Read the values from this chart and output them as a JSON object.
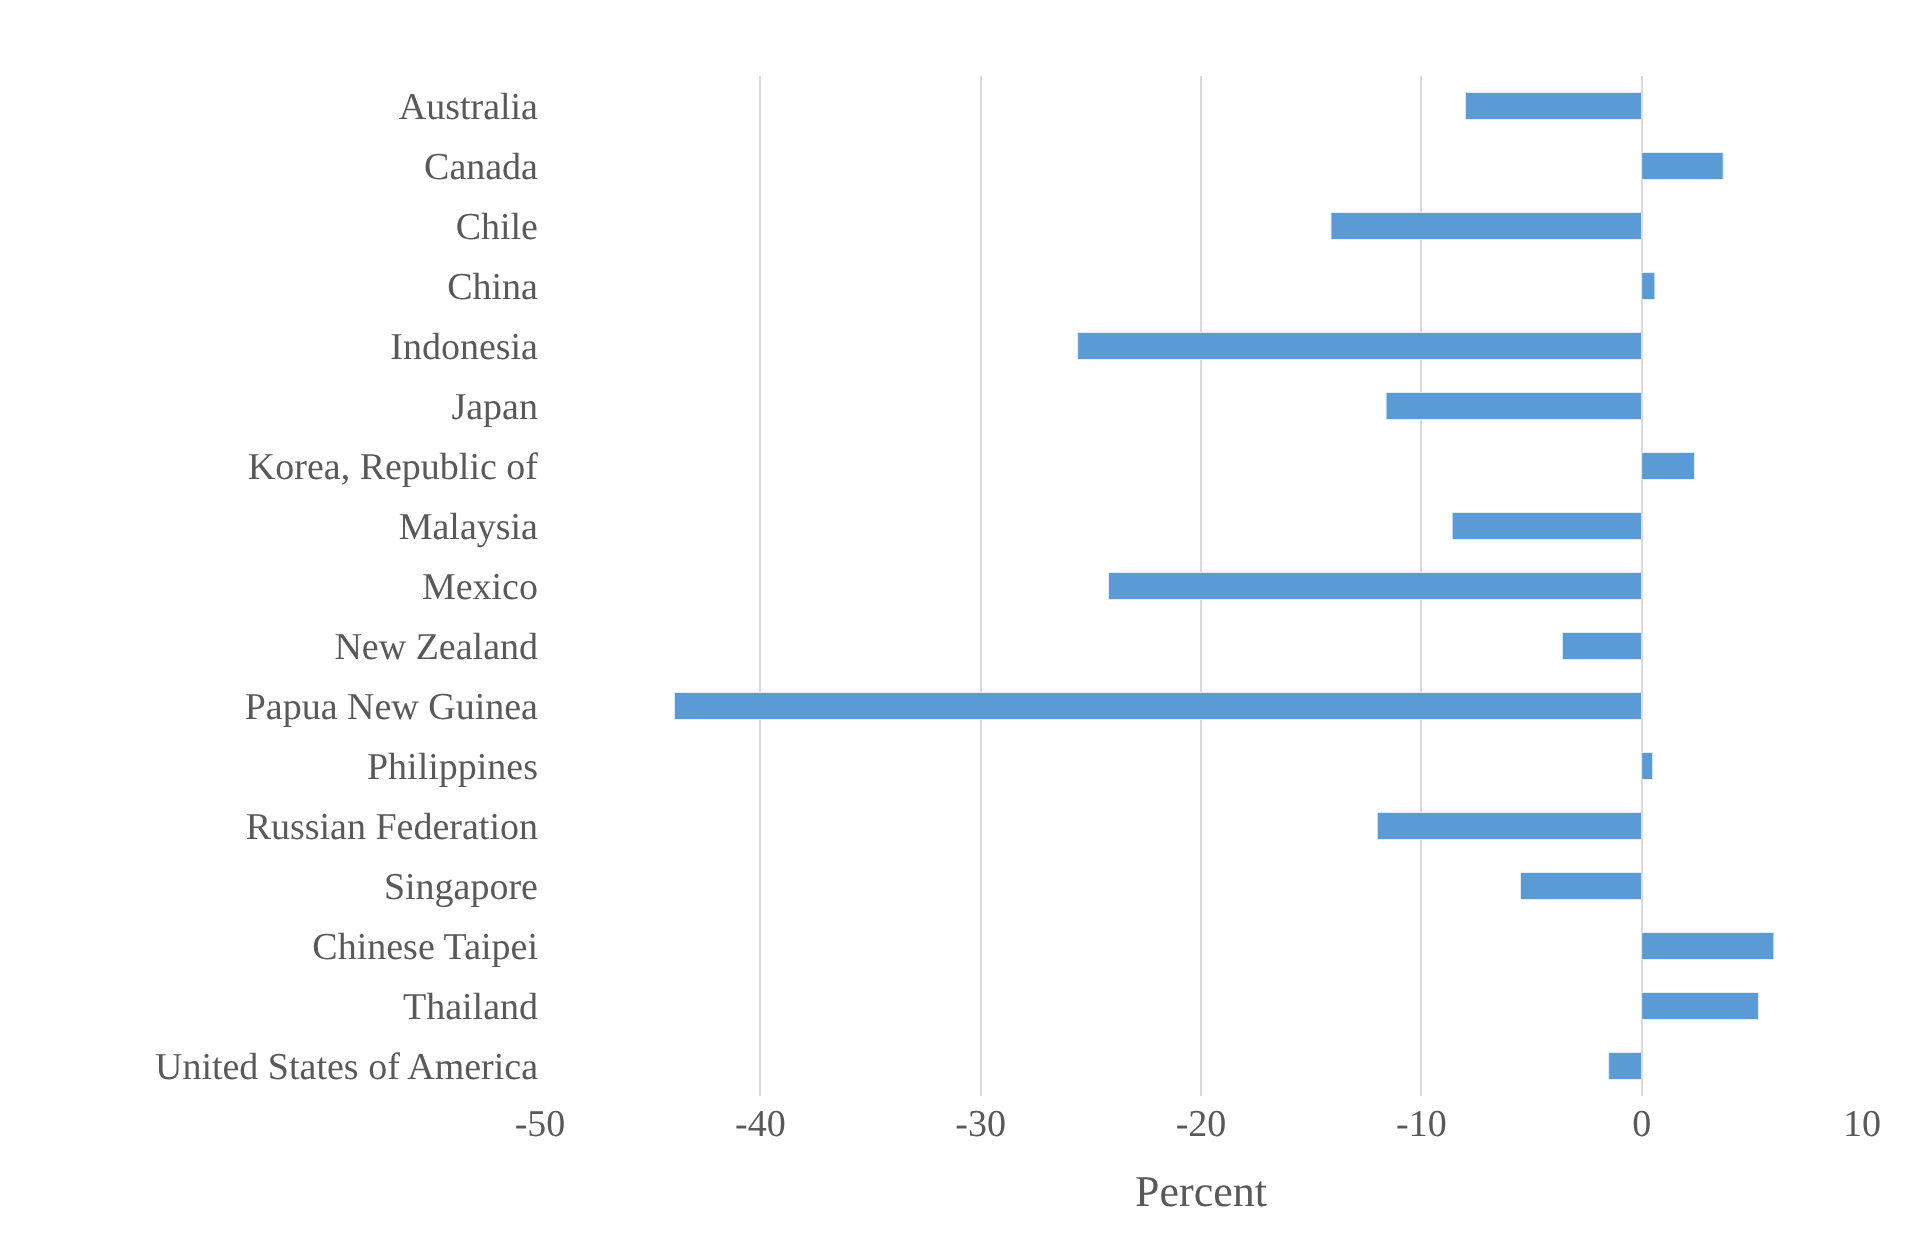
{
  "chart_data": {
    "type": "bar",
    "orientation": "horizontal",
    "xlabel": "Percent",
    "categories": [
      "Australia",
      "Canada",
      "Chile",
      "China",
      "Indonesia",
      "Japan",
      "Korea, Republic of",
      "Malaysia",
      "Mexico",
      "New Zealand",
      "Papua New Guinea",
      "Philippines",
      "Russian Federation",
      "Singapore",
      "Chinese Taipei",
      "Thailand",
      "United States of America"
    ],
    "values": [
      -8.0,
      3.7,
      -14.1,
      0.6,
      -25.6,
      -11.6,
      2.4,
      -8.6,
      -24.2,
      -3.6,
      -43.9,
      0.5,
      -12.0,
      -5.5,
      6.0,
      5.3,
      -1.5
    ],
    "color": "#5b9bd5",
    "xlim": [
      -50,
      10
    ],
    "xticks": [
      -50,
      -40,
      -30,
      -20,
      -10,
      0,
      10
    ],
    "grid": "x",
    "legend": false
  }
}
